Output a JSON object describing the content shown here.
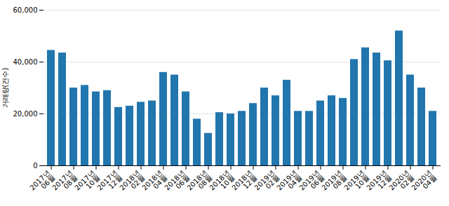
{
  "chart_data": {
    "type": "bar",
    "categories": [
      "2017년\n06월",
      null,
      "2017년\n08월",
      null,
      "2017년\n10월",
      null,
      "2017년\n12월",
      null,
      "2018년\n02월",
      null,
      "2018년\n04월",
      null,
      "2018년\n06월",
      null,
      "2018년\n08월",
      null,
      "2018년\n10월",
      null,
      "2018년\n12월",
      null,
      "2019년\n02월",
      null,
      "2019년\n04월",
      null,
      "2019년\n06월",
      null,
      "2019년\n08월",
      null,
      "2019년\n10월",
      null,
      "2019년\n12월",
      null,
      "2020년\n02월",
      null,
      "2020년\n04월"
    ],
    "values": [
      44500,
      43500,
      30000,
      31000,
      28500,
      29000,
      22500,
      23000,
      24500,
      25000,
      36000,
      35000,
      28500,
      18000,
      12500,
      20500,
      20000,
      21000,
      24000,
      30000,
      27000,
      33000,
      21000,
      21000,
      25000,
      27000,
      26000,
      41000,
      45500,
      43500,
      40500,
      52000,
      35000,
      30000,
      21000
    ],
    "color": "#2176ae",
    "ylabel": "거래량(건수)",
    "ylim": [
      0,
      60000
    ],
    "yticks": [
      0,
      {
        "value": 20000,
        "label": "20,000"
      },
      {
        "value": 40000,
        "label": "40,000"
      },
      {
        "value": 60000,
        "label": "60,000"
      }
    ],
    "grid": true
  }
}
